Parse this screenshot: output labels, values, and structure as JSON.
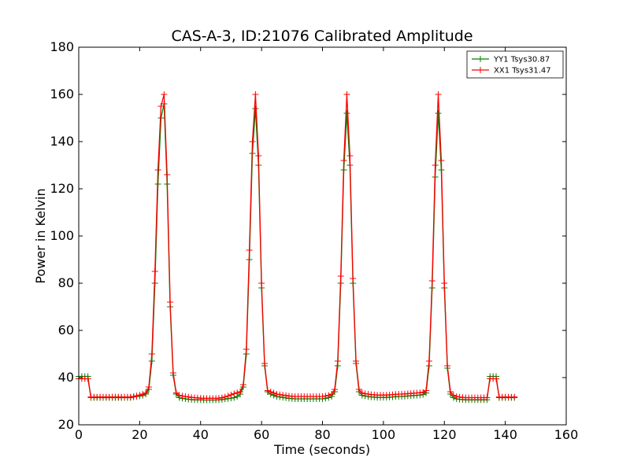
{
  "chart_data": {
    "type": "line",
    "title": "CAS-A-3, ID:21076 Calibrated Amplitude",
    "xlabel": "Time (seconds)",
    "ylabel": "Power in Kelvin",
    "xlim": [
      0,
      160
    ],
    "ylim": [
      20,
      180
    ],
    "xticks": [
      0,
      20,
      40,
      60,
      80,
      100,
      120,
      140,
      160
    ],
    "yticks": [
      20,
      40,
      60,
      80,
      100,
      120,
      140,
      160,
      180
    ],
    "grid": false,
    "legend_position": "top-right",
    "marker": "+",
    "series": [
      {
        "name": "YY1 Tsys30.87",
        "color": "#008000",
        "x": [
          0,
          1,
          2,
          3,
          4,
          5,
          6,
          7,
          8,
          9,
          10,
          11,
          12,
          13,
          14,
          15,
          16,
          17,
          18,
          19,
          20,
          21,
          22,
          23,
          24,
          25,
          26,
          27,
          28,
          29,
          30,
          31,
          32,
          33,
          34,
          35,
          36,
          37,
          38,
          39,
          40,
          41,
          42,
          43,
          44,
          45,
          46,
          47,
          48,
          49,
          50,
          51,
          52,
          53,
          54,
          55,
          56,
          57,
          58,
          59,
          60,
          61,
          62,
          63,
          64,
          65,
          66,
          67,
          68,
          69,
          70,
          71,
          72,
          73,
          74,
          75,
          76,
          77,
          78,
          79,
          80,
          81,
          82,
          83,
          84,
          85,
          86,
          87,
          88,
          89,
          90,
          91,
          92,
          93,
          94,
          95,
          96,
          97,
          98,
          99,
          100,
          101,
          102,
          103,
          104,
          105,
          106,
          107,
          108,
          109,
          110,
          111,
          112,
          113,
          114,
          115,
          116,
          117,
          118,
          119,
          120,
          121,
          122,
          123,
          124,
          125,
          126,
          127,
          128,
          129,
          130,
          131,
          132,
          133,
          134,
          135,
          136,
          137,
          138,
          139,
          140,
          141,
          142,
          143
        ],
        "y": [
          40.5,
          40.5,
          40.5,
          40.5,
          31.5,
          31.5,
          31.5,
          31.5,
          31.5,
          31.5,
          31.5,
          31.5,
          31.5,
          31.5,
          31.5,
          31.5,
          31.5,
          31.5,
          31.8,
          32,
          32.2,
          32.4,
          33,
          35,
          47,
          80,
          122,
          150,
          156,
          122,
          70,
          41,
          33,
          31.5,
          31.2,
          31,
          30.8,
          30.7,
          30.6,
          30.6,
          30.6,
          30.5,
          30.5,
          30.5,
          30.5,
          30.5,
          30.6,
          30.7,
          30.9,
          31.1,
          31.3,
          31.5,
          32,
          33,
          36,
          50,
          90,
          135,
          154,
          130,
          78,
          45,
          34,
          33,
          32.5,
          32,
          31.8,
          31.6,
          31.4,
          31.2,
          31.1,
          31,
          31,
          31,
          31,
          31,
          31,
          31,
          31,
          31,
          31,
          31.2,
          31.5,
          32,
          34,
          45,
          80,
          128,
          152,
          130,
          80,
          46,
          34,
          32.5,
          32.2,
          32,
          31.8,
          31.7,
          31.6,
          31.6,
          31.6,
          31.6,
          31.7,
          31.8,
          31.9,
          32,
          32,
          32.1,
          32.2,
          32.3,
          32.4,
          32.5,
          32.6,
          32.8,
          33.5,
          45,
          78,
          125,
          152,
          128,
          78,
          44,
          33,
          31.5,
          31,
          30.8,
          30.7,
          30.6,
          30.6,
          30.6,
          30.6,
          30.6,
          30.6,
          30.6,
          30.6,
          40.5,
          40.5,
          40.5,
          31.5,
          31.5,
          31.5,
          31.5,
          31.5,
          31.5
        ]
      },
      {
        "name": "XX1 Tsys31.47",
        "color": "#ff0000",
        "x": [
          0,
          1,
          2,
          3,
          4,
          5,
          6,
          7,
          8,
          9,
          10,
          11,
          12,
          13,
          14,
          15,
          16,
          17,
          18,
          19,
          20,
          21,
          22,
          23,
          24,
          25,
          26,
          27,
          28,
          29,
          30,
          31,
          32,
          33,
          34,
          35,
          36,
          37,
          38,
          39,
          40,
          41,
          42,
          43,
          44,
          45,
          46,
          47,
          48,
          49,
          50,
          51,
          52,
          53,
          54,
          55,
          56,
          57,
          58,
          59,
          60,
          61,
          62,
          63,
          64,
          65,
          66,
          67,
          68,
          69,
          70,
          71,
          72,
          73,
          74,
          75,
          76,
          77,
          78,
          79,
          80,
          81,
          82,
          83,
          84,
          85,
          86,
          87,
          88,
          89,
          90,
          91,
          92,
          93,
          94,
          95,
          96,
          97,
          98,
          99,
          100,
          101,
          102,
          103,
          104,
          105,
          106,
          107,
          108,
          109,
          110,
          111,
          112,
          113,
          114,
          115,
          116,
          117,
          118,
          119,
          120,
          121,
          122,
          123,
          124,
          125,
          126,
          127,
          128,
          129,
          130,
          131,
          132,
          133,
          134,
          135,
          136,
          137,
          138,
          139,
          140,
          141,
          142,
          143
        ],
        "y": [
          39.5,
          39.5,
          39.5,
          39.5,
          31.8,
          31.8,
          31.8,
          31.8,
          31.8,
          31.8,
          31.8,
          31.8,
          31.8,
          31.8,
          31.8,
          31.8,
          31.8,
          31.8,
          32,
          32.3,
          32.6,
          33,
          33.5,
          36,
          50,
          85,
          128,
          155,
          160,
          126,
          72,
          42,
          33.5,
          32.5,
          32.2,
          32,
          31.8,
          31.6,
          31.5,
          31.4,
          31.3,
          31.2,
          31.2,
          31.2,
          31.2,
          31.2,
          31.3,
          31.5,
          31.8,
          32.2,
          32.7,
          33.2,
          33.6,
          34,
          37,
          52,
          94,
          140,
          160,
          134,
          80,
          46,
          34.5,
          34,
          33.5,
          33,
          32.8,
          32.6,
          32.4,
          32.2,
          32.1,
          32,
          32,
          32,
          32,
          32,
          32,
          32,
          32,
          32,
          32,
          32.2,
          32.5,
          33,
          35,
          47,
          83,
          132,
          160,
          134,
          82,
          47,
          35,
          33.5,
          33.2,
          33,
          32.8,
          32.7,
          32.6,
          32.6,
          32.6,
          32.6,
          32.7,
          32.8,
          32.9,
          33,
          33,
          33.1,
          33.2,
          33.3,
          33.4,
          33.5,
          33.6,
          33.8,
          34.5,
          47,
          81,
          130,
          160,
          132,
          80,
          45,
          34,
          32.5,
          32,
          31.8,
          31.6,
          31.5,
          31.5,
          31.5,
          31.5,
          31.5,
          31.5,
          31.5,
          31.5,
          39.5,
          39.5,
          39.5,
          31.8,
          31.8,
          31.8,
          31.8,
          31.8,
          31.8
        ]
      }
    ]
  }
}
